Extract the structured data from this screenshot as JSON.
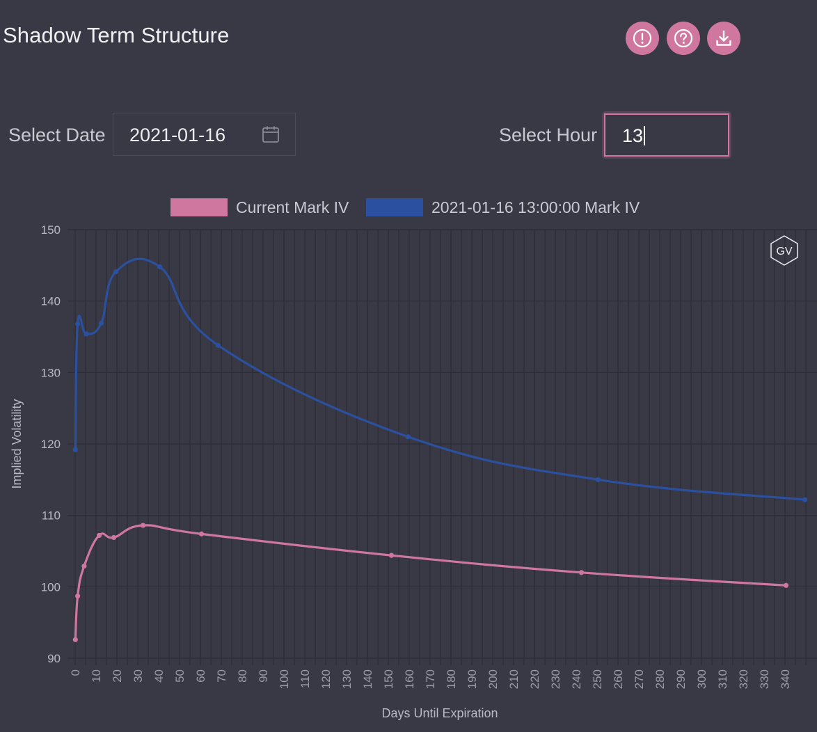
{
  "header": {
    "title": "Shadow Term Structure",
    "buttons": [
      {
        "name": "info-button",
        "icon": "exclamation-circle-icon"
      },
      {
        "name": "help-button",
        "icon": "question-circle-icon"
      },
      {
        "name": "download-button",
        "icon": "download-icon"
      }
    ]
  },
  "controls": {
    "date_label": "Select Date",
    "date_value": "2021-01-16",
    "date_icon": "calendar-icon",
    "hour_label": "Select Hour",
    "hour_value": "13"
  },
  "colors": {
    "background": "#383944",
    "accent": "#cf779f",
    "current_series": "#cf779f",
    "historic_series": "#2c50a0",
    "grid": "#2e2f38"
  },
  "badge": {
    "text": "GV"
  },
  "chart_data": {
    "type": "line",
    "title": "",
    "xlabel": "Days Until Expiration",
    "ylabel": "Implied Volatility",
    "xlim": [
      0,
      348
    ],
    "ylim": [
      90,
      150
    ],
    "x_ticks": [
      0,
      10,
      20,
      30,
      40,
      50,
      60,
      70,
      80,
      90,
      100,
      110,
      120,
      130,
      140,
      150,
      160,
      170,
      180,
      190,
      200,
      210,
      220,
      230,
      240,
      250,
      260,
      270,
      280,
      290,
      300,
      310,
      320,
      330,
      340
    ],
    "y_ticks": [
      90,
      100,
      110,
      120,
      130,
      140,
      150
    ],
    "grid": true,
    "legend_position": "top-center",
    "series": [
      {
        "name": "Current Mark IV",
        "color": "#cf779f",
        "points": [
          [
            0.1,
            92.6
          ],
          [
            1.2,
            98.7
          ],
          [
            4.3,
            102.9
          ],
          [
            11.5,
            107.2
          ],
          [
            18.5,
            106.9
          ],
          [
            32.5,
            108.6
          ],
          [
            60.5,
            107.4
          ],
          [
            151.5,
            104.4
          ],
          [
            242.5,
            102.0
          ],
          [
            340.5,
            100.2
          ]
        ]
      },
      {
        "name": "2021-01-16 13:00:00 Mark IV",
        "color": "#2c50a0",
        "points": [
          [
            0.1,
            119.2
          ],
          [
            1.2,
            136.8
          ],
          [
            5.3,
            135.4
          ],
          [
            12.5,
            136.9
          ],
          [
            19.5,
            144.1
          ],
          [
            40.5,
            144.8
          ],
          [
            68.5,
            133.8
          ],
          [
            159.5,
            121.0
          ],
          [
            250.5,
            115.0
          ],
          [
            349.5,
            112.2
          ]
        ]
      }
    ]
  }
}
